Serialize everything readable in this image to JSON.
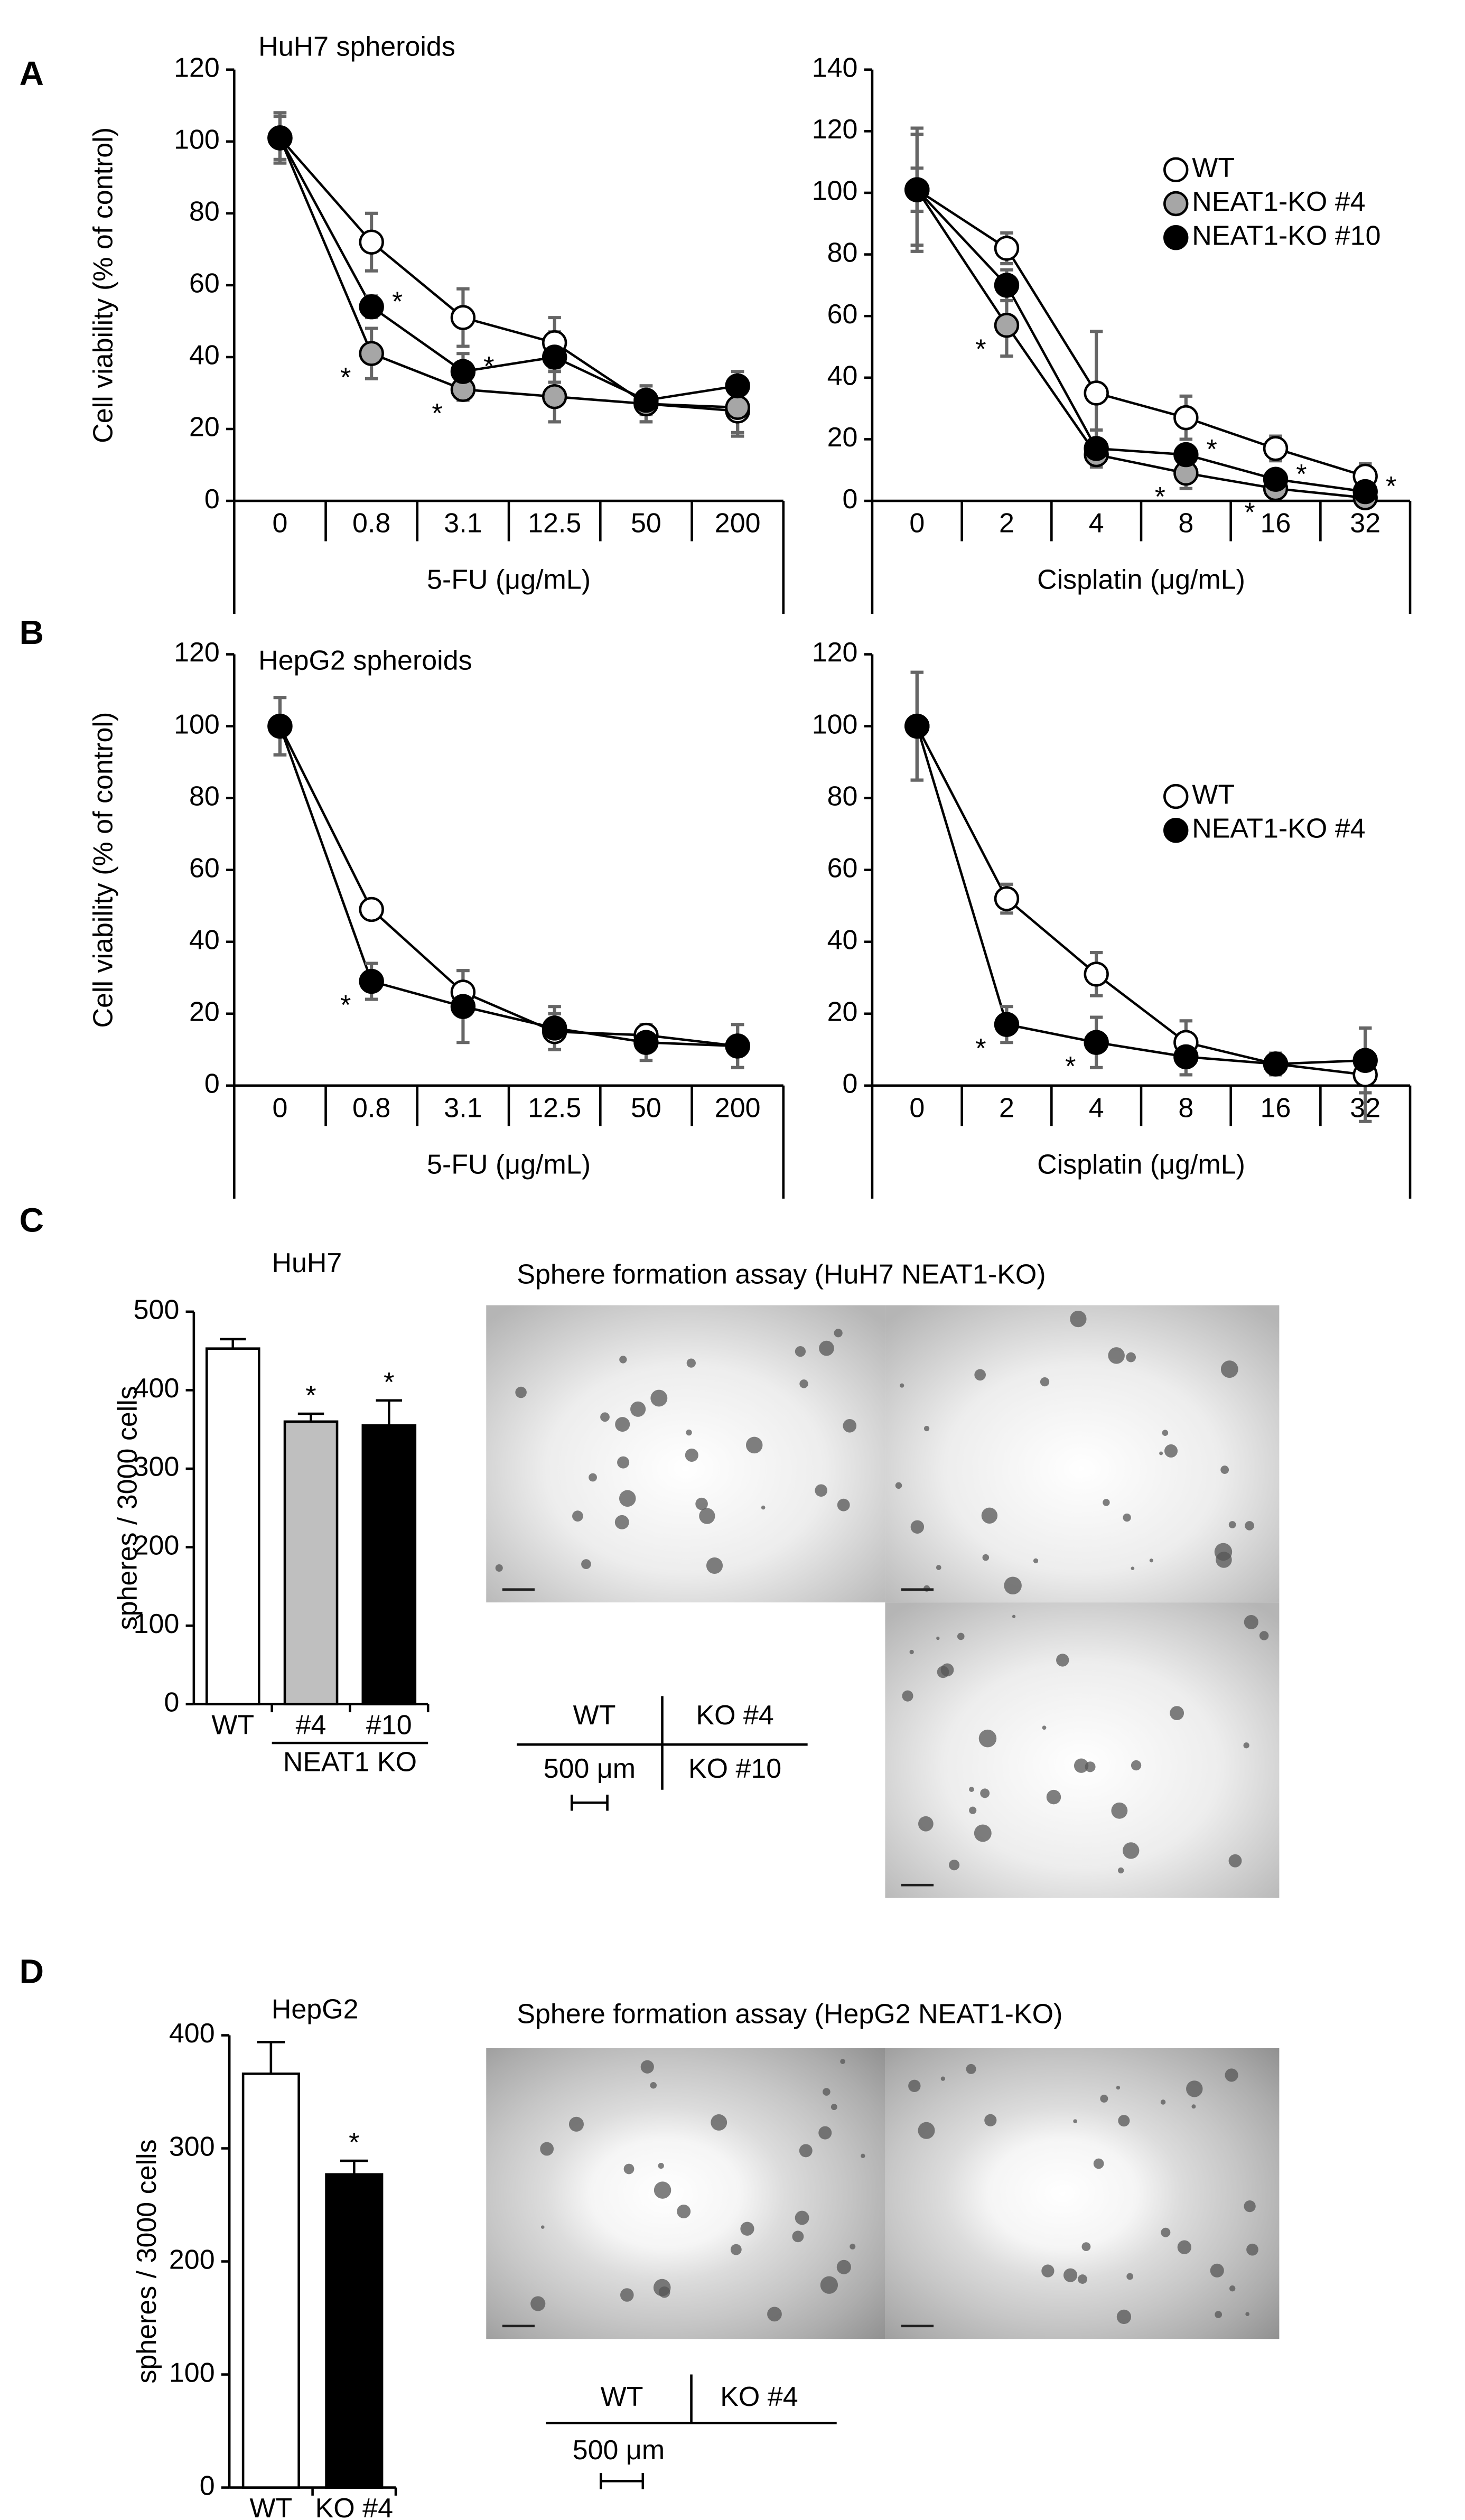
{
  "panel_labels": [
    "A",
    "B",
    "C",
    "D"
  ],
  "chart_data": [
    {
      "type": "line",
      "title": "HuH7 spheroids",
      "ylabel": "Cell viability (% of control)",
      "xlabel": "5-FU (μg/mL)",
      "categories": [
        "0",
        "0.8",
        "3.1",
        "12.5",
        "50",
        "200"
      ],
      "ylim": [
        0,
        120
      ],
      "yticks": [
        0,
        20,
        40,
        60,
        80,
        100,
        120
      ],
      "series": [
        {
          "name": "WT",
          "color": "#ffffff",
          "values": [
            101,
            72,
            51,
            44,
            27,
            25
          ],
          "errors": [
            6,
            8,
            8,
            7,
            5,
            6
          ],
          "annotations": [
            null,
            null,
            null,
            null,
            null,
            null
          ]
        },
        {
          "name": "NEAT1-KO #4",
          "color": "#a6a6a6",
          "values": [
            101,
            41,
            31,
            29,
            27,
            26
          ],
          "errors": [
            7,
            7,
            3,
            7,
            5,
            8
          ],
          "annotations": [
            null,
            "*",
            "*",
            null,
            null,
            null
          ]
        },
        {
          "name": "NEAT1-KO #10",
          "color": "#000000",
          "values": [
            101,
            54,
            36,
            40,
            28,
            32
          ],
          "errors": [
            7,
            3,
            5,
            7,
            4,
            4
          ],
          "annotations": [
            null,
            "*",
            "*",
            null,
            null,
            null
          ]
        }
      ]
    },
    {
      "type": "line",
      "xlabel": "Cisplatin (μg/mL)",
      "legend": "upper right",
      "categories": [
        "0",
        "2",
        "4",
        "8",
        "16",
        "32"
      ],
      "ylim": [
        0,
        140
      ],
      "yticks": [
        0,
        20,
        40,
        60,
        80,
        100,
        120,
        140
      ],
      "series": [
        {
          "name": "WT",
          "color": "#ffffff",
          "values": [
            101,
            82,
            35,
            27,
            17,
            8
          ],
          "errors": [
            18,
            5,
            20,
            7,
            4,
            4
          ],
          "annotations": [
            null,
            null,
            null,
            null,
            null,
            null
          ]
        },
        {
          "name": "NEAT1-KO #4",
          "color": "#a6a6a6",
          "values": [
            101,
            57,
            15,
            9,
            4,
            1
          ],
          "errors": [
            20,
            10,
            4,
            5,
            3,
            2
          ],
          "annotations": [
            null,
            "*",
            null,
            "*",
            "*",
            null
          ]
        },
        {
          "name": "NEAT1-KO #10",
          "color": "#000000",
          "values": [
            101,
            70,
            17,
            15,
            7,
            3
          ],
          "errors": [
            7,
            5,
            6,
            3,
            3,
            2
          ],
          "annotations": [
            null,
            null,
            null,
            "*",
            "*",
            "*"
          ]
        }
      ]
    },
    {
      "type": "line",
      "title": "HepG2 spheroids",
      "ylabel": "Cell viability (% of control)",
      "xlabel": "5-FU (μg/mL)",
      "categories": [
        "0",
        "0.8",
        "3.1",
        "12.5",
        "50",
        "200"
      ],
      "ylim": [
        0,
        120
      ],
      "yticks": [
        0,
        20,
        40,
        60,
        80,
        100,
        120
      ],
      "series": [
        {
          "name": "WT",
          "color": "#ffffff",
          "values": [
            100,
            49,
            26,
            15,
            14,
            11
          ],
          "errors": [
            8,
            2,
            6,
            5,
            3,
            6
          ],
          "annotations": [
            null,
            null,
            null,
            null,
            null,
            null
          ]
        },
        {
          "name": "NEAT1-KO #4",
          "color": "#000000",
          "values": [
            100,
            29,
            22,
            16,
            12,
            11
          ],
          "errors": [
            8,
            5,
            10,
            6,
            5,
            6
          ],
          "annotations": [
            null,
            "*",
            null,
            null,
            null,
            null
          ]
        }
      ]
    },
    {
      "type": "line",
      "xlabel": "Cisplatin (μg/mL)",
      "legend": "upper right",
      "categories": [
        "0",
        "2",
        "4",
        "8",
        "16",
        "32"
      ],
      "ylim": [
        0,
        120
      ],
      "yticks": [
        0,
        20,
        40,
        60,
        80,
        100,
        120
      ],
      "series": [
        {
          "name": "WT",
          "color": "#ffffff",
          "values": [
            100,
            52,
            31,
            12,
            6,
            3
          ],
          "errors": [
            15,
            4,
            6,
            6,
            3,
            13
          ],
          "annotations": [
            null,
            null,
            null,
            null,
            null,
            null
          ]
        },
        {
          "name": "NEAT1-KO #4",
          "color": "#000000",
          "values": [
            100,
            17,
            12,
            8,
            6,
            7
          ],
          "errors": [
            15,
            5,
            7,
            5,
            3,
            9
          ],
          "annotations": [
            null,
            "*",
            "*",
            null,
            null,
            null
          ]
        }
      ]
    },
    {
      "type": "bar",
      "title": "HuH7",
      "ylabel": "spheres / 3000 cells",
      "categories": [
        "WT",
        "#4",
        "#10"
      ],
      "group_label": "NEAT1 KO",
      "values": [
        453,
        360,
        355
      ],
      "errors": [
        12,
        10,
        32
      ],
      "colors": [
        "#ffffff",
        "#bfbfbf",
        "#000000"
      ],
      "annotations": [
        null,
        "*",
        "*"
      ],
      "ylim": [
        0,
        500
      ],
      "yticks": [
        0,
        100,
        200,
        300,
        400,
        500
      ]
    },
    {
      "type": "bar",
      "title": "HepG2",
      "ylabel": "spheres / 3000 cells",
      "categories": [
        "WT",
        "KO #4"
      ],
      "values": [
        366,
        277
      ],
      "errors": [
        28,
        12
      ],
      "colors": [
        "#ffffff",
        "#000000"
      ],
      "annotations": [
        null,
        "*"
      ],
      "ylim": [
        0,
        400
      ],
      "yticks": [
        0,
        100,
        200,
        300,
        400
      ]
    }
  ],
  "images": [
    {
      "title": "Sphere formation assay (HuH7 NEAT1-KO)",
      "key": [
        "WT",
        "KO #4",
        "KO #10"
      ],
      "scale": "500 μm"
    },
    {
      "title": "Sphere formation assay (HepG2 NEAT1-KO)",
      "key": [
        "WT",
        "KO #4"
      ],
      "scale": "500 μm"
    }
  ]
}
